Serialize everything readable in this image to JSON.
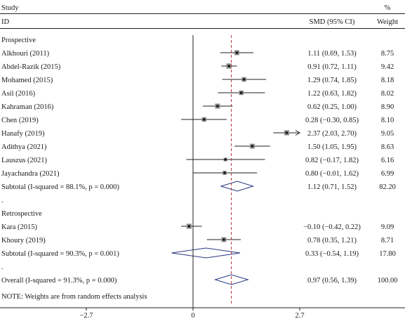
{
  "chart_data": {
    "type": "forest",
    "header": {
      "study_label": "Study",
      "id_label": "ID",
      "effect_label": "SMD (95% CI)",
      "weight_label_top": "%",
      "weight_label": "Weight"
    },
    "subgroups": [
      {
        "title": "Prospective",
        "studies": [
          {
            "name": "Alkhouri (2011)",
            "est": 1.11,
            "lo": 0.69,
            "hi": 1.53,
            "ci_text": "1.11 (0.69, 1.53)",
            "weight": "8.75"
          },
          {
            "name": "Abdel-Razik (2015)",
            "est": 0.91,
            "lo": 0.72,
            "hi": 1.11,
            "ci_text": "0.91 (0.72, 1.11)",
            "weight": "9.42"
          },
          {
            "name": "Mohamed (2015)",
            "est": 1.29,
            "lo": 0.74,
            "hi": 1.85,
            "ci_text": "1.29 (0.74, 1.85)",
            "weight": "8.18"
          },
          {
            "name": "Asil (2016)",
            "est": 1.22,
            "lo": 0.63,
            "hi": 1.82,
            "ci_text": "1.22 (0.63, 1.82)",
            "weight": "8.02"
          },
          {
            "name": "Kahraman (2016)",
            "est": 0.62,
            "lo": 0.25,
            "hi": 1.0,
            "ci_text": "0.62 (0.25, 1.00)",
            "weight": "8.90"
          },
          {
            "name": "Chen (2019)",
            "est": 0.28,
            "lo": -0.3,
            "hi": 0.85,
            "ci_text": "0.28 (−0.30, 0.85)",
            "weight": "8.10"
          },
          {
            "name": "Hanafy (2019)",
            "est": 2.37,
            "lo": 2.03,
            "hi": 2.7,
            "ci_text": "2.37 (2.03, 2.70)",
            "weight": "9.05",
            "arrow": true
          },
          {
            "name": "Adithya (2021)",
            "est": 1.5,
            "lo": 1.05,
            "hi": 1.95,
            "ci_text": "1.50 (1.05, 1.95)",
            "weight": "8.63"
          },
          {
            "name": "Lauszus (2021)",
            "est": 0.82,
            "lo": -0.17,
            "hi": 1.82,
            "ci_text": "0.82 (−0.17, 1.82)",
            "weight": "6.16"
          },
          {
            "name": "Jayachandra (2021)",
            "est": 0.8,
            "lo": -0.01,
            "hi": 1.62,
            "ci_text": "0.80 (−0.01, 1.62)",
            "weight": "6.99"
          }
        ],
        "subtotal": {
          "label": "Subtotal (I-squared = 88.1%, p = 0.000)",
          "est": 1.12,
          "lo": 0.71,
          "hi": 1.52,
          "ci_text": "1.12 (0.71, 1.52)",
          "weight": "82.20"
        }
      },
      {
        "title": "Retrospective",
        "studies": [
          {
            "name": "Kara (2015)",
            "est": -0.1,
            "lo": -0.42,
            "hi": 0.22,
            "ci_text": "−0.10 (−0.42, 0.22)",
            "weight": "9.09"
          },
          {
            "name": "Khoury (2019)",
            "est": 0.78,
            "lo": 0.35,
            "hi": 1.21,
            "ci_text": "0.78 (0.35, 1.21)",
            "weight": "8.71"
          }
        ],
        "subtotal": {
          "label": "Subtotal (I-squared = 90.3%, p = 0.001)",
          "est": 0.33,
          "lo": -0.54,
          "hi": 1.19,
          "ci_text": "0.33 (−0.54, 1.19)",
          "weight": "17.80"
        }
      }
    ],
    "overall": {
      "label": "Overall (I-squared = 91.3%, p = 0.000)",
      "est": 0.97,
      "lo": 0.56,
      "hi": 1.39,
      "ci_text": "0.97 (0.56, 1.39)",
      "weight": "100.00"
    },
    "note": "NOTE: Weights are from random effects analysis",
    "x_ticks": [
      {
        "value": -2.7,
        "label": "−2.7"
      },
      {
        "value": 0,
        "label": "0"
      },
      {
        "value": 2.7,
        "label": "2.7"
      }
    ],
    "xlim": [
      -2.7,
      2.7
    ],
    "null_line": 0,
    "colors": {
      "pooled_line": "#b03040",
      "diamond_stroke": "#2a3580",
      "box_fill": "#8c8c8c",
      "ink": "#1a1a1a"
    }
  }
}
